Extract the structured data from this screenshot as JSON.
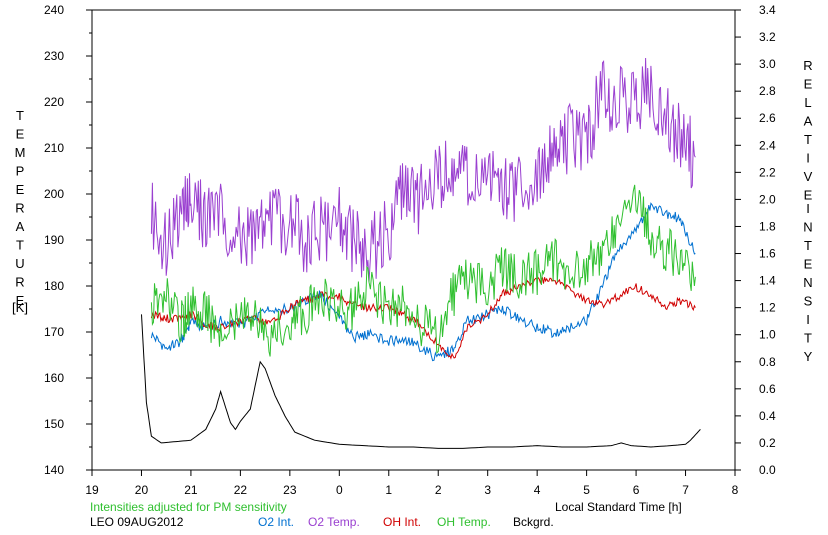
{
  "chart_data": {
    "type": "line",
    "left_axis_label_letters": [
      "T",
      "E",
      "M",
      "P",
      "E",
      "R",
      "A",
      "T",
      "U",
      "R",
      "E"
    ],
    "left_axis_unit": "[K]",
    "right_axis_label_word1": [
      "R",
      "E",
      "L",
      "A",
      "T",
      "I",
      "V",
      "E"
    ],
    "right_axis_label_word2": [
      "I",
      "N",
      "T",
      "E",
      "N",
      "S",
      "I",
      "T",
      "Y"
    ],
    "xlabel": "Local Standard Time [h]",
    "x_ticks": [
      "19",
      "20",
      "21",
      "22",
      "23",
      "0",
      "1",
      "2",
      "3",
      "4",
      "5",
      "6",
      "7",
      "8"
    ],
    "left_ticks": [
      "240",
      "230",
      "220",
      "210",
      "200",
      "190",
      "180",
      "170",
      "160",
      "150",
      "140"
    ],
    "right_ticks": [
      "3.4",
      "3.2",
      "3.0",
      "2.8",
      "2.6",
      "2.4",
      "2.2",
      "2.0",
      "1.8",
      "1.6",
      "1.4",
      "1.2",
      "1.0",
      "0.8",
      "0.6",
      "0.4",
      "0.2",
      "0.0"
    ],
    "xlim": [
      19,
      32
    ],
    "ylim_left": [
      140,
      240
    ],
    "ylim_right": [
      0,
      3.4
    ],
    "note": "Intensities adjusted for PM sensitivity",
    "site_label": "LEO 09AUG2012",
    "series": [
      {
        "name": "O2 Int.",
        "color": "#0070d0",
        "axis": "right",
        "x": [
          20.2,
          20.5,
          20.8,
          21.0,
          21.3,
          21.6,
          22.0,
          22.3,
          22.6,
          23.0,
          23.3,
          23.6,
          24.0,
          24.3,
          24.6,
          25.0,
          25.3,
          25.6,
          26.0,
          26.3,
          26.6,
          27.0,
          27.3,
          27.6,
          28.0,
          28.3,
          28.6,
          29.0,
          29.3,
          29.6,
          30.0,
          30.3,
          30.6,
          30.9,
          31.2
        ],
        "y": [
          1.0,
          0.9,
          0.95,
          1.1,
          1.05,
          1.1,
          1.08,
          1.12,
          1.2,
          1.18,
          1.25,
          1.3,
          1.12,
          0.98,
          1.0,
          0.95,
          0.97,
          0.92,
          0.82,
          0.9,
          1.1,
          1.15,
          1.2,
          1.12,
          1.05,
          1.02,
          1.04,
          1.1,
          1.35,
          1.6,
          1.8,
          1.95,
          1.9,
          1.85,
          1.6
        ]
      },
      {
        "name": "O2 Temp.",
        "color": "#9a40d0",
        "axis": "left",
        "x": [
          20.2,
          20.5,
          20.8,
          21.0,
          21.3,
          21.6,
          22.0,
          22.3,
          22.6,
          23.0,
          23.3,
          23.6,
          24.0,
          24.3,
          24.6,
          25.0,
          25.3,
          25.6,
          26.0,
          26.3,
          26.6,
          27.0,
          27.3,
          27.6,
          28.0,
          28.3,
          28.6,
          29.0,
          29.3,
          29.6,
          30.0,
          30.3,
          30.6,
          30.9,
          31.2
        ],
        "y": [
          195,
          190,
          195,
          198,
          195,
          197,
          190,
          192,
          196,
          194,
          190,
          192,
          195,
          190,
          188,
          192,
          200,
          198,
          203,
          205,
          204,
          205,
          203,
          201,
          205,
          210,
          212,
          211,
          222,
          221,
          219,
          223,
          217,
          212,
          208
        ]
      },
      {
        "name": "OH Int.",
        "color": "#d00000",
        "axis": "right",
        "x": [
          20.2,
          20.5,
          20.8,
          21.0,
          21.3,
          21.6,
          22.0,
          22.3,
          22.6,
          23.0,
          23.3,
          23.6,
          24.0,
          24.3,
          24.6,
          25.0,
          25.3,
          25.6,
          26.0,
          26.3,
          26.6,
          27.0,
          27.3,
          27.6,
          28.0,
          28.3,
          28.6,
          29.0,
          29.3,
          29.6,
          30.0,
          30.3,
          30.6,
          30.9,
          31.2
        ],
        "y": [
          1.15,
          1.12,
          1.12,
          1.15,
          1.08,
          1.05,
          1.1,
          1.12,
          1.08,
          1.2,
          1.25,
          1.3,
          1.28,
          1.22,
          1.2,
          1.2,
          1.15,
          1.08,
          0.92,
          0.82,
          1.05,
          1.15,
          1.3,
          1.35,
          1.4,
          1.42,
          1.35,
          1.25,
          1.22,
          1.28,
          1.35,
          1.3,
          1.2,
          1.25,
          1.2
        ]
      },
      {
        "name": "OH Temp.",
        "color": "#30c030",
        "axis": "left",
        "x": [
          20.2,
          20.5,
          20.8,
          21.0,
          21.3,
          21.6,
          22.0,
          22.3,
          22.6,
          23.0,
          23.3,
          23.6,
          24.0,
          24.3,
          24.6,
          25.0,
          25.3,
          25.6,
          26.0,
          26.3,
          26.6,
          27.0,
          27.3,
          27.6,
          28.0,
          28.3,
          28.6,
          29.0,
          29.3,
          29.6,
          30.0,
          30.3,
          30.6,
          30.9,
          31.2
        ],
        "y": [
          175,
          178,
          172,
          176,
          174,
          170,
          172,
          175,
          168,
          172,
          174,
          178,
          176,
          175,
          180,
          174,
          176,
          172,
          170,
          178,
          182,
          180,
          184,
          182,
          183,
          186,
          182,
          185,
          187,
          193,
          200,
          190,
          188,
          186,
          182
        ]
      },
      {
        "name": "Bckgrd.",
        "color": "#000000",
        "axis": "right",
        "x": [
          20.0,
          20.1,
          20.2,
          20.4,
          20.7,
          21.0,
          21.3,
          21.5,
          21.6,
          21.8,
          21.9,
          22.0,
          22.2,
          22.4,
          22.5,
          22.7,
          22.9,
          23.1,
          23.5,
          24.0,
          24.5,
          25.0,
          25.5,
          26.0,
          26.5,
          27.0,
          27.5,
          28.0,
          28.5,
          29.0,
          29.5,
          29.7,
          29.9,
          30.3,
          30.7,
          31.0,
          31.1,
          31.3
        ],
        "y": [
          1.15,
          0.5,
          0.25,
          0.2,
          0.21,
          0.22,
          0.3,
          0.45,
          0.58,
          0.35,
          0.3,
          0.36,
          0.45,
          0.8,
          0.75,
          0.55,
          0.4,
          0.28,
          0.22,
          0.19,
          0.18,
          0.17,
          0.17,
          0.16,
          0.16,
          0.17,
          0.17,
          0.18,
          0.17,
          0.17,
          0.18,
          0.2,
          0.18,
          0.17,
          0.18,
          0.19,
          0.22,
          0.3
        ]
      }
    ]
  }
}
